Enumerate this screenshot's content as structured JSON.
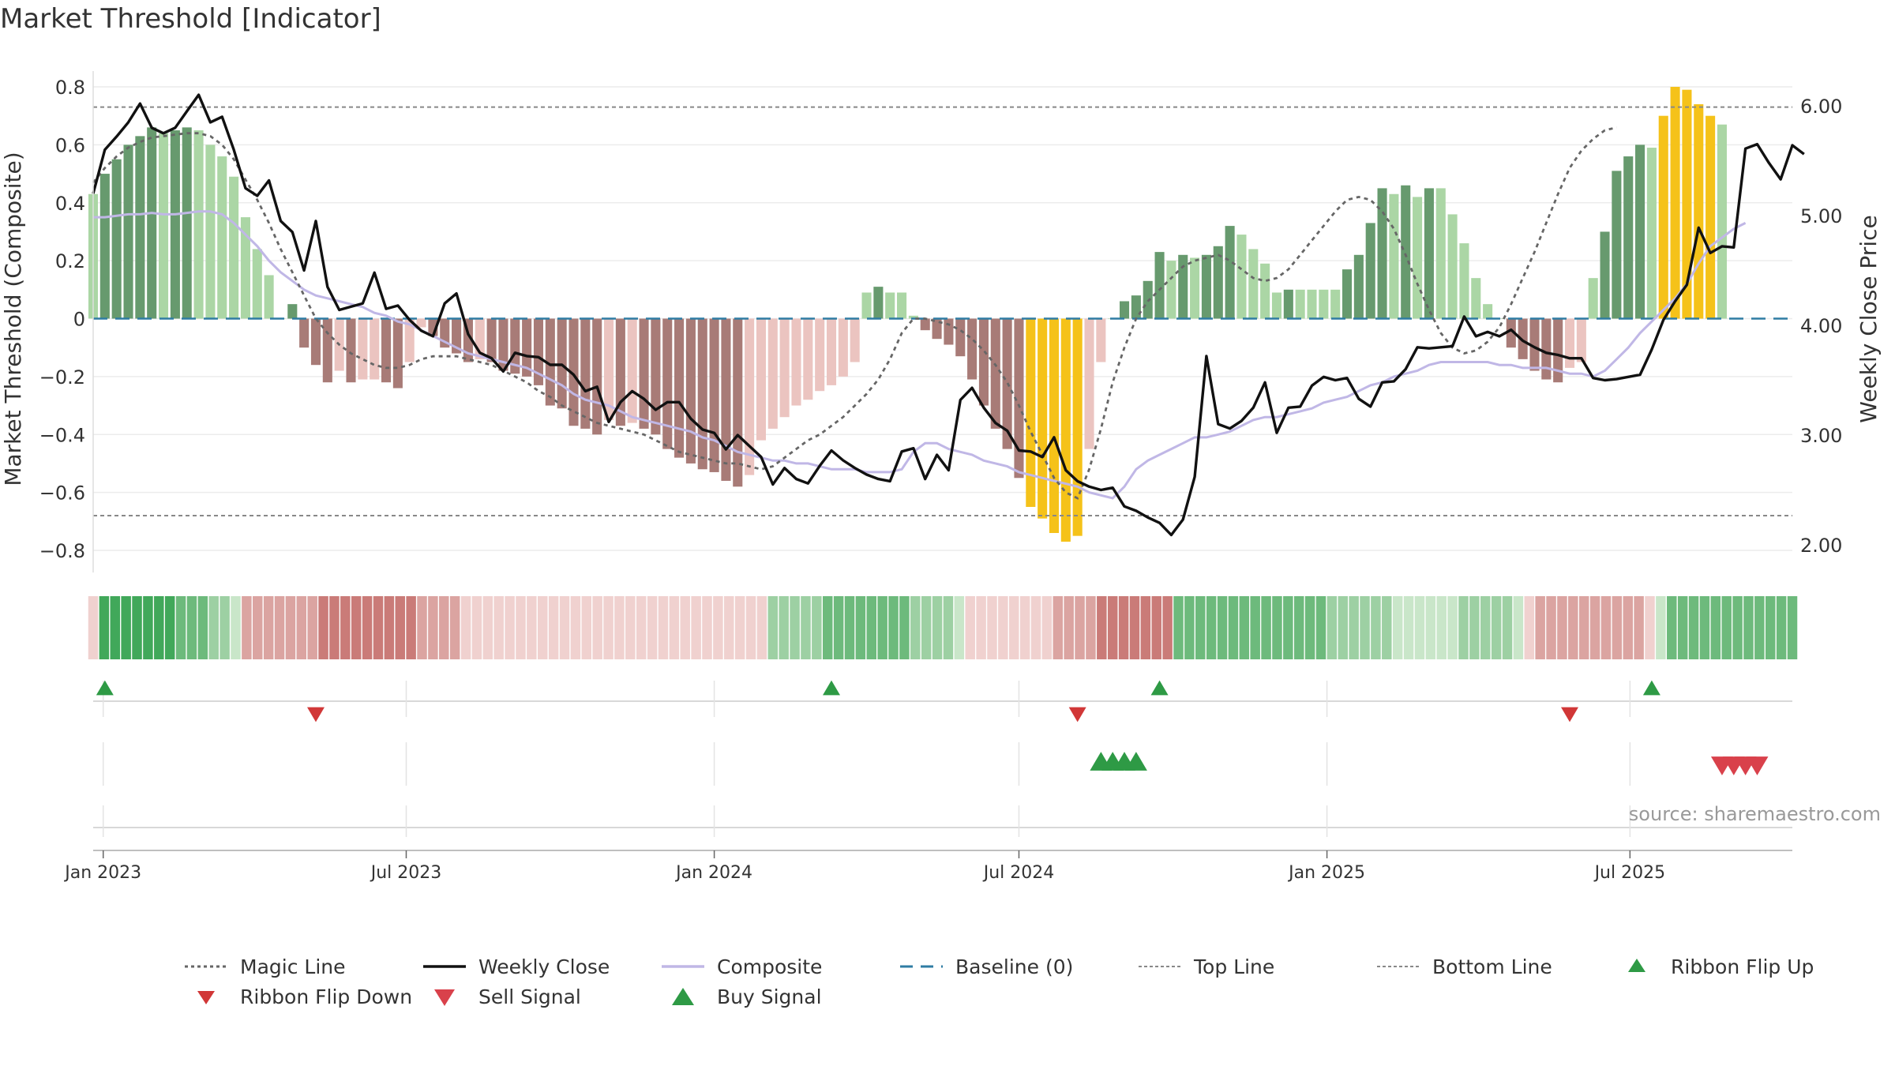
{
  "title": "Market Threshold [Indicator]",
  "source": "source: sharemaestro.com",
  "colors": {
    "strong_pos": "#679a6e",
    "weak_pos": "#abd6a5",
    "strong_neg": "#a87b77",
    "weak_neg": "#ebc4c0",
    "extreme": "#f5c219",
    "close": "#111111",
    "composite": "#c0b7e6",
    "magic": "#666666",
    "baseline": "#2f7ca3",
    "threshold": "#888888",
    "buy": "#2e9a45",
    "sell": "#d9414b",
    "flip_up": "#2e9a45",
    "flip_down": "#d13737"
  },
  "chart_data": {
    "type": "bar",
    "title": "Market Threshold [Indicator]",
    "ylabel": "Market Threshold (Composite)",
    "y2label": "Weekly Close Price",
    "ylim": [
      -0.88,
      0.82
    ],
    "y2lim": [
      1.85,
      6.35
    ],
    "yticks": [
      0.8,
      0.6,
      0.4,
      0.2,
      0,
      -0.2,
      -0.4,
      -0.6,
      -0.8
    ],
    "ytick_labels": [
      "0.8",
      "0.6",
      "0.4",
      "0.2",
      "0",
      "−0.2",
      "−0.4",
      "−0.6",
      "−0.8"
    ],
    "y2ticks": [
      6.0,
      5.0,
      4.0,
      3.0,
      2.0
    ],
    "y2tick_labels": [
      "6.00",
      "5.00",
      "4.00",
      "3.00",
      "2.00"
    ],
    "start_date": "2022-12-26",
    "end_date": "2025-10-06",
    "xticks": [
      {
        "date": "2023-01-01",
        "label": "Jan 2023"
      },
      {
        "date": "2023-07-01",
        "label": "Jul 2023"
      },
      {
        "date": "2024-01-01",
        "label": "Jan 2024"
      },
      {
        "date": "2024-07-01",
        "label": "Jul 2024"
      },
      {
        "date": "2025-01-01",
        "label": "Jan 2025"
      },
      {
        "date": "2025-07-01",
        "label": "Jul 2025"
      }
    ],
    "top_line": 0.73,
    "bottom_line": -0.68,
    "baseline": 0,
    "composite_bars": [
      0.43,
      0.5,
      0.55,
      0.6,
      0.63,
      0.66,
      0.64,
      0.65,
      0.66,
      0.65,
      0.6,
      0.56,
      0.49,
      0.35,
      0.24,
      0.15,
      0.0,
      0.05,
      -0.1,
      -0.16,
      -0.22,
      -0.18,
      -0.22,
      -0.21,
      -0.21,
      -0.22,
      -0.24,
      -0.15,
      -0.03,
      -0.06,
      -0.1,
      -0.12,
      -0.15,
      -0.14,
      -0.15,
      -0.18,
      -0.19,
      -0.2,
      -0.23,
      -0.3,
      -0.31,
      -0.37,
      -0.38,
      -0.4,
      -0.35,
      -0.37,
      -0.36,
      -0.38,
      -0.4,
      -0.45,
      -0.48,
      -0.5,
      -0.52,
      -0.53,
      -0.56,
      -0.58,
      -0.54,
      -0.42,
      -0.38,
      -0.34,
      -0.3,
      -0.28,
      -0.25,
      -0.23,
      -0.2,
      -0.15,
      0.09,
      0.11,
      0.09,
      0.09,
      0.01,
      -0.04,
      -0.07,
      -0.09,
      -0.13,
      -0.21,
      -0.3,
      -0.38,
      -0.45,
      -0.55,
      -0.65,
      -0.69,
      -0.74,
      -0.77,
      -0.75,
      -0.45,
      -0.15,
      0.0,
      0.06,
      0.08,
      0.13,
      0.23,
      0.2,
      0.22,
      0.21,
      0.22,
      0.25,
      0.32,
      0.29,
      0.24,
      0.19,
      0.09,
      0.1,
      0.1,
      0.1,
      0.1,
      0.1,
      0.17,
      0.22,
      0.33,
      0.45,
      0.43,
      0.46,
      0.42,
      0.45,
      0.45,
      0.36,
      0.26,
      0.14,
      0.05,
      0.0,
      -0.1,
      -0.14,
      -0.18,
      -0.21,
      -0.22,
      -0.17,
      -0.15,
      0.14,
      0.3,
      0.51,
      0.56,
      0.6,
      0.59,
      0.7,
      0.8,
      0.79,
      0.74,
      0.7,
      0.67
    ],
    "weekly_close": [
      5.2,
      5.6,
      5.72,
      5.85,
      6.02,
      5.8,
      5.75,
      5.8,
      5.95,
      6.1,
      5.85,
      5.9,
      5.6,
      5.25,
      5.18,
      5.32,
      4.95,
      4.85,
      4.5,
      4.95,
      4.35,
      4.14,
      4.17,
      4.2,
      4.48,
      4.15,
      4.18,
      4.05,
      3.95,
      3.9,
      4.2,
      4.29,
      3.92,
      3.75,
      3.7,
      3.58,
      3.75,
      3.72,
      3.71,
      3.64,
      3.64,
      3.55,
      3.4,
      3.44,
      3.12,
      3.3,
      3.4,
      3.33,
      3.23,
      3.3,
      3.3,
      3.15,
      3.05,
      3.02,
      2.87,
      3.0,
      2.9,
      2.8,
      2.55,
      2.7,
      2.6,
      2.56,
      2.72,
      2.86,
      2.77,
      2.7,
      2.64,
      2.6,
      2.58,
      2.85,
      2.88,
      2.6,
      2.82,
      2.68,
      3.32,
      3.43,
      3.25,
      3.11,
      3.04,
      2.86,
      2.85,
      2.8,
      2.98,
      2.68,
      2.58,
      2.53,
      2.5,
      2.52,
      2.35,
      2.31,
      2.25,
      2.2,
      2.09,
      2.23,
      2.62,
      3.72,
      3.1,
      3.06,
      3.13,
      3.25,
      3.48,
      3.02,
      3.25,
      3.26,
      3.45,
      3.53,
      3.5,
      3.52,
      3.33,
      3.26,
      3.48,
      3.49,
      3.6,
      3.8,
      3.79,
      3.8,
      3.81,
      4.08,
      3.9,
      3.94,
      3.9,
      3.96,
      3.86,
      3.8,
      3.75,
      3.73,
      3.7,
      3.7,
      3.52,
      3.5,
      3.51,
      3.53,
      3.55,
      3.78,
      4.05,
      4.22,
      4.37,
      4.89,
      4.66,
      4.72,
      4.71,
      5.61,
      5.65,
      5.48,
      5.33,
      5.64,
      5.56
    ],
    "composite_line": [
      0.35,
      0.35,
      0.355,
      0.36,
      0.36,
      0.365,
      0.36,
      0.36,
      0.365,
      0.37,
      0.37,
      0.36,
      0.33,
      0.29,
      0.25,
      0.2,
      0.16,
      0.13,
      0.1,
      0.08,
      0.07,
      0.06,
      0.05,
      0.04,
      0.02,
      0.01,
      -0.01,
      -0.02,
      -0.04,
      -0.06,
      -0.08,
      -0.1,
      -0.12,
      -0.13,
      -0.14,
      -0.15,
      -0.16,
      -0.17,
      -0.19,
      -0.21,
      -0.23,
      -0.26,
      -0.28,
      -0.29,
      -0.3,
      -0.32,
      -0.34,
      -0.35,
      -0.36,
      -0.37,
      -0.38,
      -0.39,
      -0.41,
      -0.42,
      -0.44,
      -0.46,
      -0.47,
      -0.48,
      -0.49,
      -0.49,
      -0.5,
      -0.5,
      -0.51,
      -0.52,
      -0.52,
      -0.52,
      -0.53,
      -0.53,
      -0.53,
      -0.52,
      -0.46,
      -0.43,
      -0.43,
      -0.45,
      -0.46,
      -0.47,
      -0.49,
      -0.5,
      -0.51,
      -0.53,
      -0.54,
      -0.55,
      -0.56,
      -0.57,
      -0.58,
      -0.6,
      -0.61,
      -0.62,
      -0.58,
      -0.52,
      -0.49,
      -0.47,
      -0.45,
      -0.43,
      -0.41,
      -0.41,
      -0.4,
      -0.39,
      -0.37,
      -0.35,
      -0.34,
      -0.34,
      -0.33,
      -0.32,
      -0.31,
      -0.29,
      -0.28,
      -0.27,
      -0.25,
      -0.23,
      -0.22,
      -0.2,
      -0.19,
      -0.18,
      -0.16,
      -0.15,
      -0.15,
      -0.15,
      -0.15,
      -0.15,
      -0.16,
      -0.16,
      -0.17,
      -0.17,
      -0.17,
      -0.18,
      -0.19,
      -0.19,
      -0.2,
      -0.18,
      -0.14,
      -0.1,
      -0.05,
      -0.01,
      0.03,
      0.07,
      0.12,
      0.19,
      0.25,
      0.28,
      0.31,
      0.33
    ],
    "magic_line": [
      0.47,
      0.52,
      0.56,
      0.59,
      0.61,
      0.625,
      0.63,
      0.635,
      0.64,
      0.64,
      0.63,
      0.6,
      0.55,
      0.48,
      0.41,
      0.33,
      0.24,
      0.16,
      0.08,
      0.0,
      -0.05,
      -0.09,
      -0.12,
      -0.14,
      -0.16,
      -0.17,
      -0.17,
      -0.16,
      -0.14,
      -0.13,
      -0.13,
      -0.13,
      -0.14,
      -0.15,
      -0.16,
      -0.18,
      -0.2,
      -0.22,
      -0.25,
      -0.27,
      -0.3,
      -0.32,
      -0.34,
      -0.36,
      -0.37,
      -0.38,
      -0.39,
      -0.4,
      -0.42,
      -0.44,
      -0.46,
      -0.47,
      -0.48,
      -0.49,
      -0.5,
      -0.5,
      -0.51,
      -0.52,
      -0.51,
      -0.48,
      -0.45,
      -0.42,
      -0.4,
      -0.37,
      -0.34,
      -0.3,
      -0.26,
      -0.21,
      -0.14,
      -0.05,
      0.0,
      0.0,
      -0.01,
      -0.02,
      -0.04,
      -0.07,
      -0.11,
      -0.16,
      -0.22,
      -0.3,
      -0.39,
      -0.47,
      -0.55,
      -0.6,
      -0.62,
      -0.52,
      -0.38,
      -0.22,
      -0.1,
      0.0,
      0.06,
      0.1,
      0.14,
      0.18,
      0.2,
      0.21,
      0.22,
      0.2,
      0.17,
      0.14,
      0.13,
      0.14,
      0.17,
      0.22,
      0.27,
      0.32,
      0.37,
      0.41,
      0.42,
      0.41,
      0.37,
      0.31,
      0.22,
      0.12,
      0.03,
      -0.05,
      -0.1,
      -0.12,
      -0.11,
      -0.08,
      -0.03,
      0.05,
      0.14,
      0.23,
      0.33,
      0.43,
      0.52,
      0.58,
      0.62,
      0.65,
      0.66
    ],
    "ribbon": [
      "n1",
      "p4",
      "p4",
      "p4",
      "p4",
      "p4",
      "p4",
      "p4",
      "p3",
      "p3",
      "p3",
      "p2",
      "p2",
      "p1",
      "n2",
      "n2",
      "n2",
      "n2",
      "n2",
      "n2",
      "n2",
      "n3",
      "n3",
      "n3",
      "n3",
      "n3",
      "n3",
      "n3",
      "n3",
      "n3",
      "n2",
      "n2",
      "n2",
      "n2",
      "n1",
      "n1",
      "n1",
      "n1",
      "n1",
      "n1",
      "n1",
      "n1",
      "n1",
      "n1",
      "n1",
      "n1",
      "n1",
      "n1",
      "n1",
      "n1",
      "n1",
      "n1",
      "n1",
      "n1",
      "n1",
      "n1",
      "n1",
      "n1",
      "n1",
      "n1",
      "n1",
      "n1",
      "p2",
      "p2",
      "p2",
      "p2",
      "p2",
      "p3",
      "p3",
      "p3",
      "p3",
      "p3",
      "p3",
      "p3",
      "p3",
      "p2",
      "p2",
      "p2",
      "p2",
      "p1",
      "n1",
      "n1",
      "n1",
      "n1",
      "n1",
      "n1",
      "n1",
      "n1",
      "n2",
      "n2",
      "n2",
      "n2",
      "n3",
      "n3",
      "n3",
      "n3",
      "n3",
      "n3",
      "n3",
      "p3",
      "p3",
      "p3",
      "p3",
      "p3",
      "p3",
      "p3",
      "p3",
      "p3",
      "p3",
      "p3",
      "p3",
      "p3",
      "p3",
      "p2",
      "p2",
      "p2",
      "p2",
      "p2",
      "p2",
      "p1",
      "p1",
      "p1",
      "p1",
      "p1",
      "p1",
      "p2",
      "p2",
      "p2",
      "p2",
      "p2",
      "p1",
      "n1",
      "n2",
      "n2",
      "n2",
      "n2",
      "n2",
      "n2",
      "n2",
      "n2",
      "n2",
      "n2",
      "n1",
      "p1",
      "p3",
      "p3",
      "p3",
      "p3",
      "p3",
      "p3",
      "p3",
      "p3",
      "p3",
      "p3",
      "p3",
      "p3"
    ],
    "ribbon_flip_up": [
      "2023-01-02",
      "2024-03-11",
      "2024-09-23",
      "2025-07-14"
    ],
    "ribbon_flip_down": [
      "2023-05-08",
      "2024-08-05",
      "2025-05-26"
    ],
    "buy_signals": [
      "2024-08-19",
      "2024-08-26",
      "2024-09-02",
      "2024-09-09"
    ],
    "sell_signals": [
      "2025-08-25",
      "2025-09-01",
      "2025-09-08",
      "2025-09-15"
    ]
  },
  "legend": [
    {
      "label": "Magic Line",
      "icon": "dotted-line"
    },
    {
      "label": "Weekly Close",
      "icon": "solid-line"
    },
    {
      "label": "Composite",
      "icon": "lavender-line"
    },
    {
      "label": "Baseline (0)",
      "icon": "dashed-line"
    },
    {
      "label": "Top Line",
      "icon": "dotted-gray-line"
    },
    {
      "label": "Bottom Line",
      "icon": "dotted-gray-line"
    },
    {
      "label": "Ribbon Flip Up",
      "icon": "triangle-up-green"
    },
    {
      "label": "Ribbon Flip Down",
      "icon": "triangle-down-red"
    },
    {
      "label": "Sell Signal",
      "icon": "triangle-down-red"
    },
    {
      "label": "Buy Signal",
      "icon": "triangle-up-green"
    }
  ]
}
